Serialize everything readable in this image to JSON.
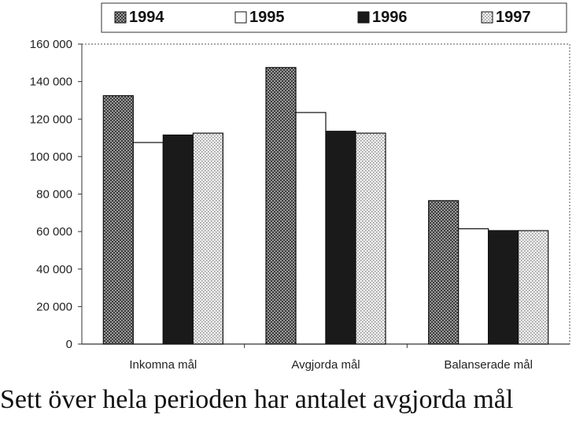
{
  "chart_data": {
    "type": "bar",
    "title": "",
    "xlabel": "",
    "ylabel": "",
    "categories": [
      "Inkomna mål",
      "Avgjorda mål",
      "Balanserade mål"
    ],
    "series": [
      {
        "name": "1994",
        "values": [
          132500,
          147500,
          76500
        ],
        "pattern": "dense-dots",
        "color": "#7a7a7a"
      },
      {
        "name": "1995",
        "values": [
          107500,
          123500,
          61500
        ],
        "pattern": "none",
        "color": "#ffffff"
      },
      {
        "name": "1996",
        "values": [
          111500,
          113500,
          60500
        ],
        "pattern": "solid",
        "color": "#1a1a1a"
      },
      {
        "name": "1997",
        "values": [
          112500,
          112500,
          60500
        ],
        "pattern": "light-dots",
        "color": "#d0d0d0"
      }
    ],
    "ylim": [
      0,
      160000
    ],
    "yticks": [
      "0",
      "20 000",
      "40 000",
      "60 000",
      "80 000",
      "100 000",
      "120 000",
      "140 000",
      "160 000"
    ],
    "ytick_values": [
      0,
      20000,
      40000,
      60000,
      80000,
      100000,
      120000,
      140000,
      160000
    ],
    "grid": false,
    "legend_position": "top"
  },
  "caption": {
    "text": "Sett över hela perioden har antalet avgjorda mål"
  }
}
